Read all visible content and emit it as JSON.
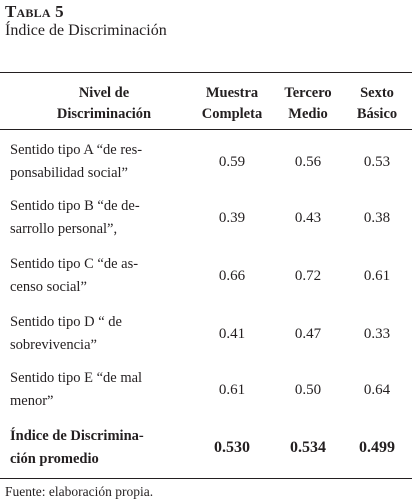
{
  "caption": {
    "label": "Tabla 5",
    "title": "Índice de Discriminación"
  },
  "table": {
    "headers": {
      "nivel": "Nivel de Discriminación",
      "muestra": "Muestra Completa",
      "tercero": "Tercero Medio",
      "sexto": "Sexto Básico"
    },
    "rows": [
      {
        "label": "Sentido tipo A “de res-ponsabilidad social”",
        "line1": "Sentido tipo A “de res-",
        "line2": "ponsabilidad social”",
        "muestra": "0.59",
        "tercero": "0.56",
        "sexto": "0.53"
      },
      {
        "label": "Sentido tipo B “de de-sarrollo personal”,",
        "line1": "Sentido tipo B “de de-",
        "line2": "sarrollo personal”,",
        "muestra": "0.39",
        "tercero": "0.43",
        "sexto": "0.38"
      },
      {
        "label": "Sentido tipo C “de as-censo social”",
        "line1": "Sentido tipo C “de as-",
        "line2": "censo social”",
        "muestra": "0.66",
        "tercero": "0.72",
        "sexto": "0.61"
      },
      {
        "label": "Sentido tipo D “ de sobrevivencia”",
        "line1": "Sentido tipo D “ de",
        "line2": "sobrevivencia”",
        "muestra": "0.41",
        "tercero": "0.47",
        "sexto": "0.33"
      },
      {
        "label": "Sentido tipo E “de mal menor”",
        "line1": "Sentido tipo E “de mal",
        "line2": "menor”",
        "muestra": "0.61",
        "tercero": "0.50",
        "sexto": "0.64"
      }
    ],
    "total": {
      "line1": "Índice de Discrimina-",
      "line2": "ción promedio",
      "muestra": "0.530",
      "tercero": "0.534",
      "sexto": "0.499"
    }
  },
  "footer": {
    "source": "Fuente: elaboración propia."
  }
}
